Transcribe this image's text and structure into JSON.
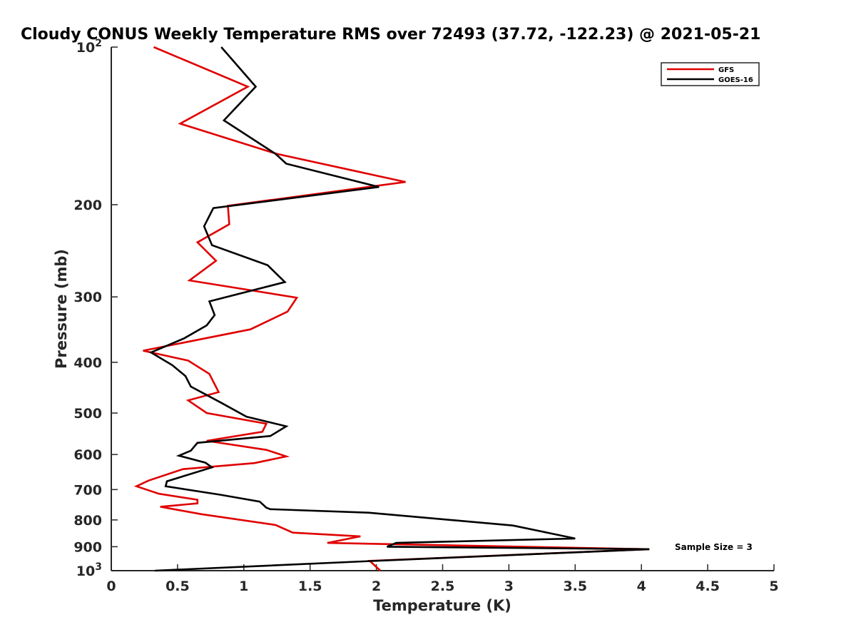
{
  "chart_data": {
    "type": "line",
    "title": "Cloudy CONUS Weekly Temperature RMS over 72493 (37.72, -122.23) @ 2021-05-21",
    "xlabel": "Temperature (K)",
    "ylabel": "Pressure (mb)",
    "xlim": [
      0,
      5
    ],
    "ylim": [
      100,
      1000
    ],
    "yscale": "log",
    "y_reversed": true,
    "xticks": [
      0,
      0.5,
      1,
      1.5,
      2,
      2.5,
      3,
      3.5,
      4,
      4.5,
      5
    ],
    "xtick_labels": [
      "0",
      "0.5",
      "1",
      "1.5",
      "2",
      "2.5",
      "3",
      "3.5",
      "4",
      "4.5",
      "5"
    ],
    "yticks": [
      100,
      200,
      300,
      400,
      500,
      600,
      700,
      800,
      900,
      1000
    ],
    "ytick_labels": [
      {
        "base": "10",
        "exp": "2"
      },
      {
        "base": "200"
      },
      {
        "base": "300"
      },
      {
        "base": "400"
      },
      {
        "base": "500"
      },
      {
        "base": "600"
      },
      {
        "base": "700"
      },
      {
        "base": "800"
      },
      {
        "base": "900"
      },
      {
        "base": "10",
        "exp": "3"
      }
    ],
    "grid": false,
    "legend_position": "top-right",
    "annotation": "Sample Size = 3",
    "series": [
      {
        "name": "GFS",
        "color": "#e00000",
        "points": [
          [
            0.32,
            100
          ],
          [
            1.03,
            119
          ],
          [
            0.52,
            140
          ],
          [
            1.25,
            160
          ],
          [
            2.22,
            181
          ],
          [
            0.88,
            201
          ],
          [
            0.89,
            218
          ],
          [
            0.65,
            236
          ],
          [
            0.79,
            256
          ],
          [
            0.59,
            279
          ],
          [
            1.4,
            301
          ],
          [
            1.33,
            320
          ],
          [
            1.05,
            346
          ],
          [
            0.24,
            380
          ],
          [
            0.58,
            397
          ],
          [
            0.74,
            421
          ],
          [
            0.81,
            456
          ],
          [
            0.58,
            473
          ],
          [
            0.72,
            500
          ],
          [
            1.17,
            524
          ],
          [
            1.14,
            543
          ],
          [
            0.72,
            565
          ],
          [
            1.17,
            588
          ],
          [
            1.32,
            605
          ],
          [
            1.08,
            623
          ],
          [
            0.54,
            640
          ],
          [
            0.28,
            673
          ],
          [
            0.19,
            690
          ],
          [
            0.36,
            713
          ],
          [
            0.65,
            732
          ],
          [
            0.65,
            744
          ],
          [
            0.37,
            755
          ],
          [
            0.68,
            780
          ],
          [
            1.24,
            818
          ],
          [
            1.37,
            846
          ],
          [
            1.88,
            860
          ],
          [
            1.63,
            885
          ],
          [
            4.06,
            910
          ],
          [
            1.95,
            958
          ],
          [
            2.03,
            1000
          ]
        ]
      },
      {
        "name": "GOES-16",
        "color": "#000000",
        "points": [
          [
            0.83,
            100
          ],
          [
            1.09,
            119
          ],
          [
            0.85,
            138
          ],
          [
            1.24,
            160
          ],
          [
            1.32,
            167
          ],
          [
            2.02,
            185
          ],
          [
            0.77,
            203
          ],
          [
            0.7,
            220
          ],
          [
            0.76,
            239
          ],
          [
            1.18,
            261
          ],
          [
            1.31,
            281
          ],
          [
            0.74,
            306
          ],
          [
            0.78,
            325
          ],
          [
            0.72,
            340
          ],
          [
            0.55,
            360
          ],
          [
            0.3,
            383
          ],
          [
            0.46,
            405
          ],
          [
            0.56,
            425
          ],
          [
            0.6,
            445
          ],
          [
            0.83,
            478
          ],
          [
            1.02,
            508
          ],
          [
            1.32,
            530
          ],
          [
            1.2,
            553
          ],
          [
            0.65,
            570
          ],
          [
            0.6,
            590
          ],
          [
            0.51,
            603
          ],
          [
            0.71,
            622
          ],
          [
            0.76,
            635
          ],
          [
            0.42,
            675
          ],
          [
            0.41,
            690
          ],
          [
            0.82,
            716
          ],
          [
            1.12,
            738
          ],
          [
            1.17,
            758
          ],
          [
            1.2,
            763
          ],
          [
            1.94,
            775
          ],
          [
            3.03,
            820
          ],
          [
            3.3,
            847
          ],
          [
            3.5,
            868
          ],
          [
            2.15,
            885
          ],
          [
            2.08,
            900
          ],
          [
            4.06,
            910
          ],
          [
            1.9,
            960
          ],
          [
            0.33,
            1000
          ]
        ]
      }
    ]
  }
}
